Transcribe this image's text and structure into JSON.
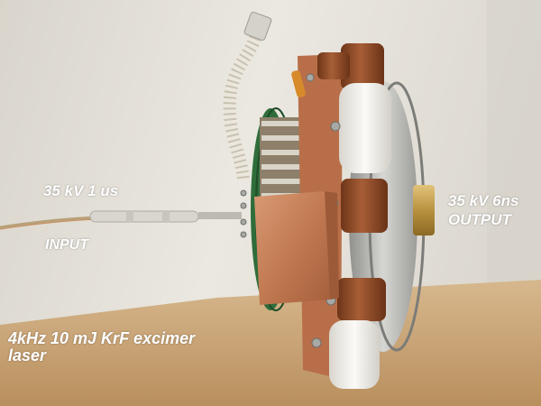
{
  "labels": {
    "input_spec": "35 kV  1 us",
    "input": "INPUT",
    "output_spec": "35 kV  6ns",
    "output": "OUTPUT",
    "laser_line1": "4kHz  10 mJ  KrF excimer",
    "laser_line2": "laser"
  },
  "colors": {
    "wall": "#e6e2da",
    "table": "#c9a679",
    "copper": "#c6805a",
    "ferrite_ceramic": "#f3f1ec",
    "capacitor": "#8a4a2a",
    "aluminum": "#b9b9b6",
    "pcb": "#2f6d3a",
    "caption_text": "#ffffff"
  }
}
